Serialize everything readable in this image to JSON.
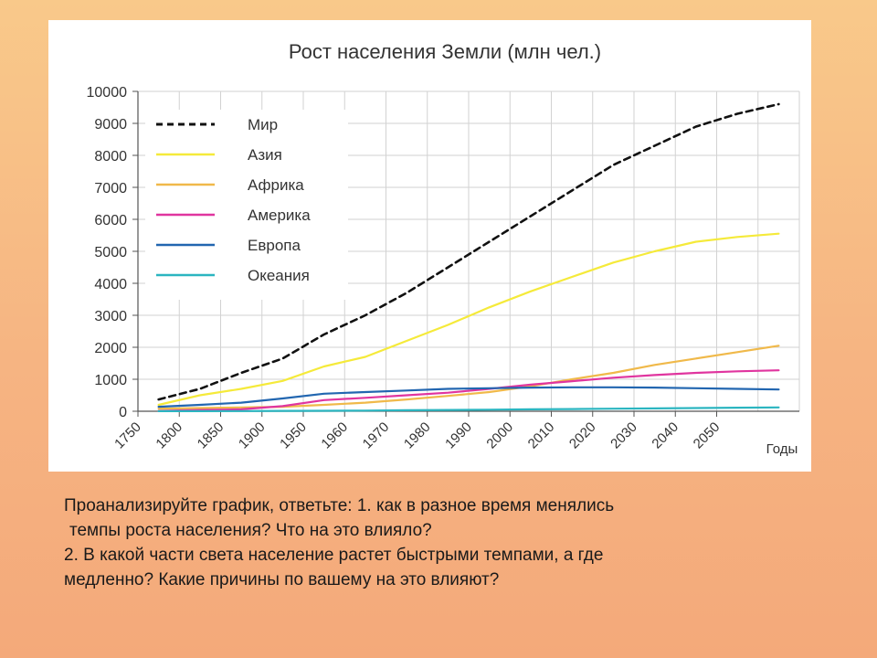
{
  "chart_data": {
    "type": "line",
    "title": "Рост населения Земли (млн чел.)",
    "xlabel": "Годы",
    "ylabel": "",
    "x_tick_labels": [
      "1750",
      "1800",
      "1850",
      "1900",
      "1950",
      "1960",
      "1970",
      "1980",
      "1990",
      "2000",
      "2010",
      "2020",
      "2030",
      "2040",
      "2050"
    ],
    "y_tick_labels": [
      "0",
      "1000",
      "2000",
      "3000",
      "4000",
      "5000",
      "6000",
      "7000",
      "8000",
      "9000",
      "10000"
    ],
    "ylim": [
      0,
      10000
    ],
    "x_positions": [
      "1750",
      "1800",
      "1850",
      "1900",
      "1950",
      "1960",
      "1970",
      "1980",
      "1990",
      "2000",
      "2010",
      "2020",
      "2030",
      "2040",
      "2050",
      "2060"
    ],
    "grid": true,
    "legend_position": "top-left",
    "series": [
      {
        "name": "Мир",
        "color": "#111111",
        "dash": true,
        "values": [
          370,
          700,
          1200,
          1650,
          2400,
          3000,
          3700,
          4500,
          5300,
          6100,
          6900,
          7700,
          8300,
          8900,
          9300,
          9600
        ]
      },
      {
        "name": "Азия",
        "color": "#f5ea3a",
        "dash": false,
        "values": [
          200,
          500,
          700,
          950,
          1400,
          1700,
          2200,
          2700,
          3250,
          3750,
          4200,
          4650,
          5000,
          5300,
          5450,
          5550
        ]
      },
      {
        "name": "Африка",
        "color": "#f0b94a",
        "dash": false,
        "values": [
          80,
          100,
          120,
          140,
          200,
          270,
          370,
          480,
          600,
          780,
          1000,
          1200,
          1450,
          1650,
          1850,
          2050
        ]
      },
      {
        "name": "Америка",
        "color": "#e0359f",
        "dash": false,
        "values": [
          10,
          40,
          60,
          160,
          350,
          420,
          500,
          580,
          700,
          830,
          940,
          1050,
          1130,
          1200,
          1250,
          1280
        ]
      },
      {
        "name": "Европа",
        "color": "#2266b0",
        "dash": false,
        "values": [
          140,
          200,
          270,
          400,
          550,
          600,
          650,
          700,
          720,
          740,
          750,
          750,
          740,
          720,
          700,
          680
        ]
      },
      {
        "name": "Океания",
        "color": "#2bb5c0",
        "dash": false,
        "values": [
          2,
          2,
          5,
          10,
          15,
          20,
          30,
          40,
          50,
          60,
          70,
          80,
          90,
          100,
          110,
          120
        ]
      }
    ]
  },
  "caption": {
    "line1": "Проанализируйте график, ответьте: 1. как в разное время менялись",
    "line2": "темпы роста населения? Что на это влияло?",
    "line3": "2.   В какой части света население растет быстрыми темпами, а где",
    "line4": "медленно? Какие причины по вашему на это влияют?"
  }
}
